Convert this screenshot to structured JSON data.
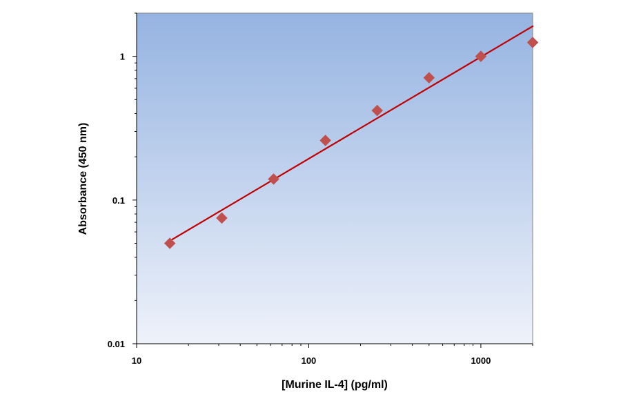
{
  "chart_data": {
    "type": "scatter",
    "title": "",
    "xlabel": "[Murine IL-4] (pg/ml)",
    "ylabel": "Absorbance (450 nm)",
    "x_scale": "log",
    "y_scale": "log",
    "xlim": [
      10,
      2000
    ],
    "ylim": [
      0.01,
      2
    ],
    "x_ticks": [
      10,
      100,
      1000
    ],
    "x_tick_labels": [
      "10",
      "100",
      "1000"
    ],
    "y_ticks": [
      0.01,
      0.1,
      1
    ],
    "y_tick_labels": [
      "0.01",
      "0.1",
      "1"
    ],
    "grid": false,
    "legend": "none",
    "points": {
      "x": [
        15.6,
        31.25,
        62.5,
        125,
        250,
        500,
        1000,
        2000
      ],
      "y": [
        0.05,
        0.075,
        0.14,
        0.26,
        0.42,
        0.71,
        1.0,
        1.25
      ]
    },
    "fit_line": {
      "x": [
        15.6,
        2000
      ],
      "y": [
        0.052,
        1.62
      ]
    },
    "colors": {
      "marker": "#C0504D",
      "fit_line": "#C00000",
      "plot_bg_top": "#95B3E1",
      "plot_bg_bottom": "#EEF2FA"
    }
  }
}
